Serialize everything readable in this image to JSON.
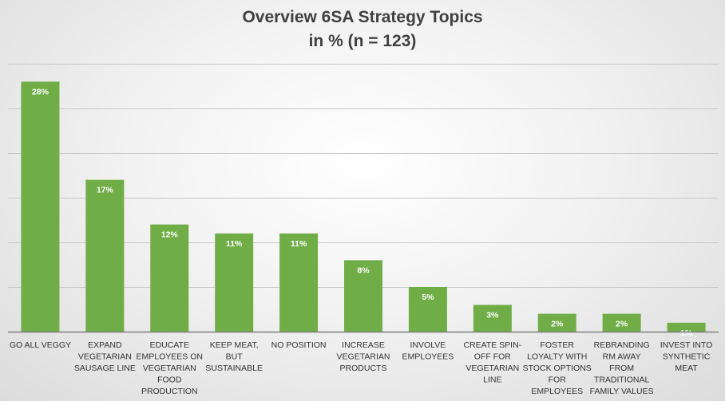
{
  "chart_data": {
    "type": "bar",
    "title": "Overview 6SA Strategy Topics",
    "subtitle": "in % (n = 123)",
    "xlabel": "",
    "ylabel": "",
    "ylim": [
      0,
      0.3
    ],
    "grid": true,
    "legend": "none",
    "categories": [
      [
        "GO ALL VEGGY"
      ],
      [
        "EXPAND",
        "VEGETARIAN",
        "SAUSAGE LINE"
      ],
      [
        "EDUCATE",
        "EMPLOYEES ON",
        "VEGETARIAN",
        "FOOD",
        "PRODUCTION"
      ],
      [
        "KEEP MEAT,",
        "BUT",
        "SUSTAINABLE"
      ],
      [
        "NO POSITION"
      ],
      [
        "INCREASE",
        "VEGETARIAN",
        "PRODUCTS"
      ],
      [
        "INVOLVE",
        "EMPLOYEES"
      ],
      [
        "CREATE SPIN-",
        "OFF FOR",
        "VEGETARIAN",
        "LINE"
      ],
      [
        "FOSTER",
        "LOYALTY WITH",
        "STOCK OPTIONS",
        "FOR",
        "EMPLOYEES"
      ],
      [
        "REBRANDING",
        "RM AWAY",
        "FROM",
        "TRADITIONAL",
        "FAMILY VALUES"
      ],
      [
        "INVEST INTO",
        "SYNTHETIC",
        "MEAT"
      ]
    ],
    "values": [
      0.28,
      0.17,
      0.12,
      0.11,
      0.11,
      0.08,
      0.05,
      0.03,
      0.02,
      0.02,
      0.01
    ],
    "data_labels": [
      "28%",
      "17%",
      "12%",
      "11%",
      "11%",
      "8%",
      "5%",
      "3%",
      "2%",
      "2%",
      "1%"
    ],
    "bar_color": "#70ad47"
  }
}
